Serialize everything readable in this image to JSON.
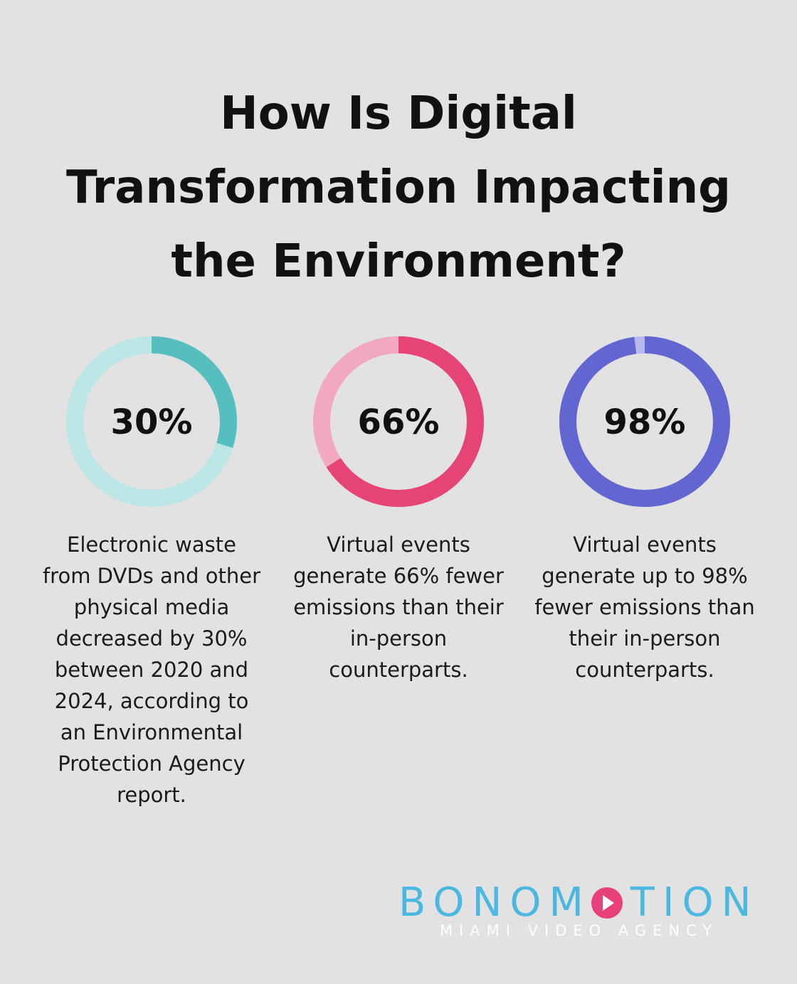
{
  "title_lines": [
    "How Is Digital",
    "Transformation Impacting",
    "the Environment?"
  ],
  "chart_data": [
    {
      "type": "pie",
      "value": 30,
      "label": "30%",
      "description_lines": [
        "Electronic waste",
        "from DVDs and other",
        "physical media",
        "decreased by 30%",
        "between 2020 and",
        "2024, according to",
        "an Environmental",
        "Protection Agency",
        "report."
      ],
      "colors": {
        "fill": "#57bec0",
        "track": "#bde6e6"
      }
    },
    {
      "type": "pie",
      "value": 66,
      "label": "66%",
      "description_lines": [
        "Virtual events",
        "generate 66% fewer",
        "emissions than their",
        "in-person",
        "counterparts."
      ],
      "colors": {
        "fill": "#e64477",
        "track": "#f2a9bf"
      }
    },
    {
      "type": "pie",
      "value": 98,
      "label": "98%",
      "description_lines": [
        "Virtual events",
        "generate up to 98%",
        "fewer emissions than",
        "their in-person",
        "counterparts."
      ],
      "colors": {
        "fill": "#6266d0",
        "track": "#b9b8ec"
      }
    }
  ],
  "logo": {
    "brand_before": "BONOM",
    "brand_after": "TION",
    "tagline": "MIAMI VIDEO AGENCY",
    "colors": {
      "brand": "#4bb8e2",
      "play": "#e8407a",
      "tagline": "#ffffff"
    },
    "icon": "play-circle-icon"
  }
}
